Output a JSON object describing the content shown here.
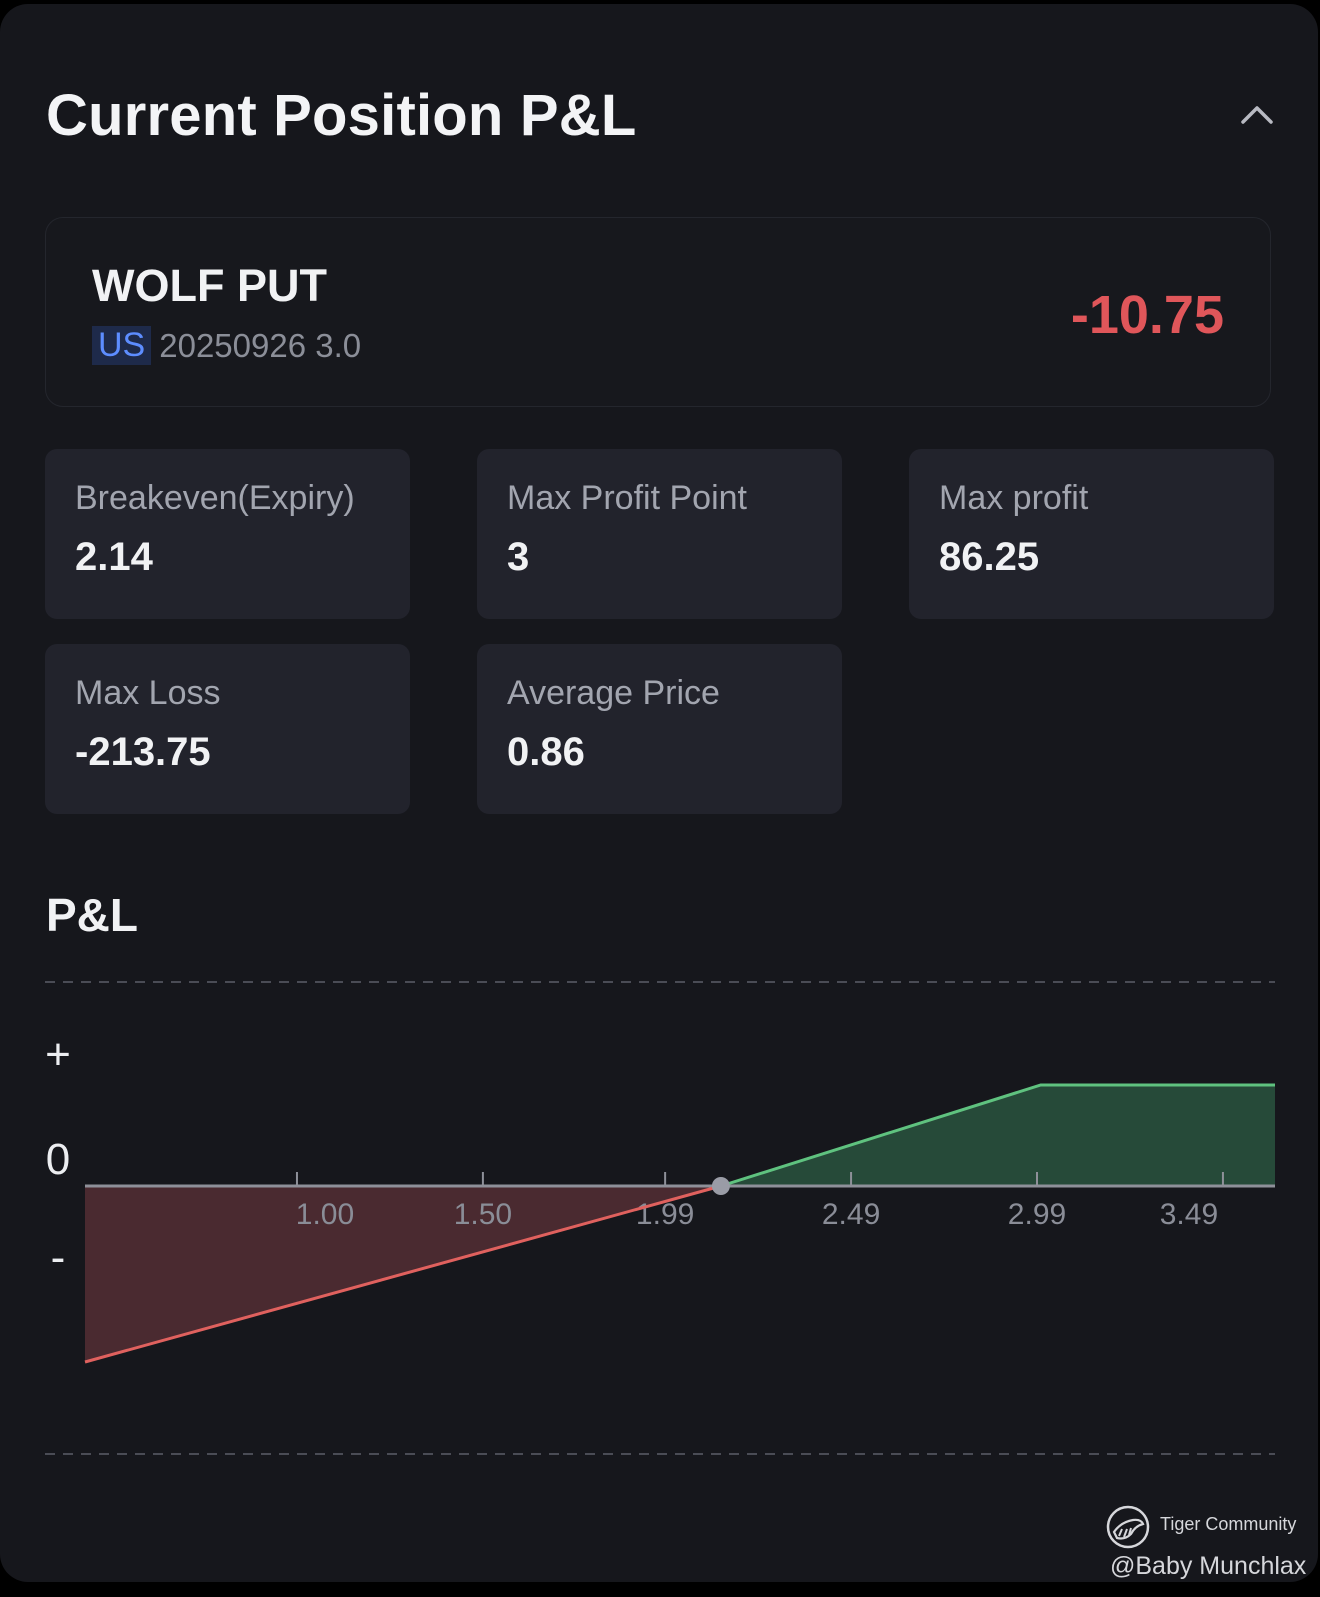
{
  "header": {
    "title": "Current Position P&L"
  },
  "position": {
    "name": "WOLF PUT",
    "market": "US",
    "detail": "20250926 3.0",
    "pnl": "-10.75"
  },
  "stats": [
    {
      "label": "Breakeven(Expiry)",
      "value": "2.14"
    },
    {
      "label": "Max Profit Point",
      "value": "3"
    },
    {
      "label": "Max profit",
      "value": "86.25"
    },
    {
      "label": "Max Loss",
      "value": "-213.75"
    },
    {
      "label": "Average Price",
      "value": "0.86"
    }
  ],
  "pl_section": {
    "title": "P&L"
  },
  "chart_data": {
    "type": "area",
    "y_markers": [
      "+",
      "0",
      "-"
    ],
    "tick_labels": [
      "1.00",
      "1.50",
      "1.99",
      "2.49",
      "2.99",
      "3.49"
    ],
    "tick_values": [
      1.0,
      1.5,
      1.99,
      2.49,
      2.99,
      3.49
    ],
    "xlim": [
      0.43,
      3.63
    ],
    "x": [
      0.43,
      2.14,
      3.0,
      3.63
    ],
    "y": [
      -213.75,
      0,
      86.25,
      86.25
    ],
    "breakeven": 2.14,
    "ylim": [
      -213.75,
      86.25
    ],
    "colors": {
      "loss": "#e0615e",
      "loss_fill": "#4a2a30",
      "profit": "#5fc27f",
      "profit_fill": "#264a39",
      "axis": "#8e9099"
    }
  },
  "watermark": {
    "brand": "Tiger Community",
    "user": "@Baby Munchlax"
  }
}
